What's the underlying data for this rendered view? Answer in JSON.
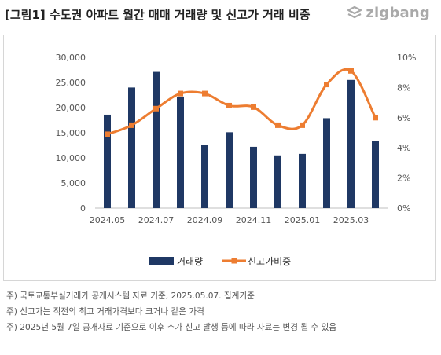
{
  "title": "[그림1] 수도권 아파트 월간 매매 거래량 및 신고가 거래 비중",
  "logo": {
    "text": "zigbang",
    "icon": "zigbang-logo-icon",
    "color": "#a9a9a9"
  },
  "chart_data": {
    "type": "bar",
    "categories": [
      "2024.05",
      "2024.06",
      "2024.07",
      "2024.08",
      "2024.09",
      "2024.10",
      "2024.11",
      "2024.12",
      "2025.01",
      "2025.02",
      "2025.03",
      "2025.04"
    ],
    "x_tick_labels": [
      "2024.05",
      "",
      "2024.07",
      "",
      "2024.09",
      "",
      "2024.11",
      "",
      "2025.01",
      "",
      "2025.03",
      ""
    ],
    "series": [
      {
        "name": "거래량",
        "type": "bar",
        "axis": "left",
        "color": "#1f3864",
        "values": [
          18600,
          24000,
          27100,
          22200,
          12500,
          15100,
          12200,
          10500,
          10800,
          17900,
          25500,
          13400
        ]
      },
      {
        "name": "신고가비중",
        "type": "line",
        "axis": "right",
        "color": "#ed7d31",
        "smooth": true,
        "values": [
          4.9,
          5.5,
          6.6,
          7.6,
          7.6,
          6.8,
          6.7,
          5.5,
          5.5,
          8.2,
          9.1,
          6.0
        ]
      }
    ],
    "y_left": {
      "min": 0,
      "max": 30000,
      "ticks": [
        "0",
        "5,000",
        "10,000",
        "15,000",
        "20,000",
        "25,000",
        "30,000"
      ]
    },
    "y_right": {
      "min": 0,
      "max": 10,
      "ticks": [
        "0%",
        "2%",
        "4%",
        "6%",
        "8%",
        "10%"
      ]
    },
    "grid": false,
    "legend": "bottom"
  },
  "notes": [
    "주) 국토교통부실거래가 공개시스템 자료 기준, 2025.05.07. 집계기준",
    "주) 신고가는 직전의 최고 거래가격보다 크거나 같은 가격",
    "주) 2025년 5월 7일 공개자료 기준으로 이후 추가 신고 발생 등에 따라 자료는 변경 될 수 있음"
  ]
}
